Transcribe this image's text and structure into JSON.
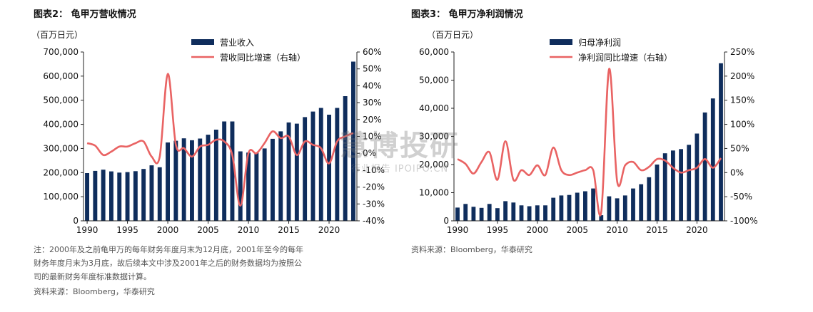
{
  "left": {
    "title": "图表2： 龟甲万营收情况",
    "unit": "（百万日元）",
    "note_lines": [
      "注：2000年及之前龟甲万的每年财务年度月末为12月底，2001年至今的每年",
      "财务年度月末为3月底，故后续本文中涉及2001年之后的财务数据均为按照公",
      "司的最新财务年度标准数据计算。"
    ],
    "source": "资料来源：Bloomberg，华泰研究"
  },
  "right": {
    "title": "图表3： 龟甲万净利润情况",
    "unit": "（百万日元）",
    "source": "资料来源：Bloomberg，华泰研究"
  },
  "watermark": {
    "main": "慧博投研",
    "sub": "行业报告 IPOIPO.CN"
  },
  "colors": {
    "bar": "#0f2d5c",
    "line": "#e96363",
    "axis": "#222222"
  },
  "chart_data": [
    {
      "type": "bar",
      "x": [
        1990,
        1991,
        1992,
        1993,
        1994,
        1995,
        1996,
        1997,
        1998,
        1999,
        2000,
        2001,
        2002,
        2003,
        2004,
        2005,
        2006,
        2007,
        2008,
        2009,
        2010,
        2011,
        2012,
        2013,
        2014,
        2015,
        2016,
        2017,
        2018,
        2019,
        2020,
        2021,
        2022,
        2023
      ],
      "series": [
        {
          "name": "营业收入",
          "axis": "left",
          "values": [
            198000,
            207000,
            212000,
            205000,
            200000,
            202000,
            206000,
            215000,
            230000,
            222000,
            325000,
            332000,
            342000,
            334000,
            341000,
            357000,
            378000,
            412000,
            412000,
            288000,
            283000,
            283000,
            300000,
            340000,
            371000,
            408000,
            403000,
            430000,
            453000,
            468000,
            440000,
            468000,
            517000,
            660000
          ]
        },
        {
          "name": "营收同比增速（右轴）",
          "axis": "right",
          "type": "line",
          "values": [
            6,
            4.5,
            -1,
            1,
            4,
            4,
            6,
            7,
            -2,
            -2,
            47,
            5,
            3,
            -2,
            4,
            5,
            8,
            7,
            -1,
            -31,
            0,
            0,
            6,
            13,
            9,
            10,
            -1,
            7,
            5,
            3,
            -6,
            7,
            10,
            12
          ]
        }
      ],
      "xlabel": "",
      "ylabel": "",
      "ylim": [
        0,
        700000
      ],
      "y2lim": [
        -40,
        60
      ],
      "xticks": [
        "1990",
        "1995",
        "2000",
        "2005",
        "2010",
        "2015",
        "2020"
      ],
      "yticks": [
        "0",
        "100,000",
        "200,000",
        "300,000",
        "400,000",
        "500,000",
        "600,000",
        "700,000"
      ],
      "y2ticks": [
        "-40%",
        "-30%",
        "-20%",
        "-10%",
        "0%",
        "10%",
        "20%",
        "30%",
        "40%",
        "50%",
        "60%"
      ],
      "legend": "top-center",
      "grid": false
    },
    {
      "type": "bar",
      "x": [
        1990,
        1991,
        1992,
        1993,
        1994,
        1995,
        1996,
        1997,
        1998,
        1999,
        2000,
        2001,
        2002,
        2003,
        2004,
        2005,
        2006,
        2007,
        2008,
        2009,
        2010,
        2011,
        2012,
        2013,
        2014,
        2015,
        2016,
        2017,
        2018,
        2019,
        2020,
        2021,
        2022,
        2023
      ],
      "series": [
        {
          "name": "归母净利润",
          "axis": "left",
          "values": [
            4700,
            6000,
            5000,
            4600,
            6000,
            4500,
            7000,
            6500,
            5500,
            5200,
            5500,
            5500,
            8200,
            9000,
            9200,
            10000,
            10500,
            11500,
            2000,
            8700,
            8000,
            9000,
            11500,
            13000,
            15500,
            20000,
            24000,
            25000,
            25500,
            27000,
            31000,
            38500,
            43500,
            56000
          ]
        },
        {
          "name": "净利润同比增速（右轴）",
          "axis": "right",
          "type": "line",
          "values": [
            28,
            18,
            -2,
            22,
            42,
            -15,
            65,
            -15,
            5,
            -5,
            15,
            -5,
            52,
            5,
            -5,
            0,
            5,
            5,
            -82,
            215,
            -18,
            15,
            22,
            5,
            12,
            28,
            25,
            10,
            0,
            5,
            10,
            28,
            10,
            30
          ]
        }
      ],
      "xlabel": "",
      "ylabel": "",
      "ylim": [
        0,
        60000
      ],
      "y2lim": [
        -100,
        250
      ],
      "xticks": [
        "1990",
        "1995",
        "2000",
        "2005",
        "2010",
        "2015",
        "2020"
      ],
      "yticks": [
        "0",
        "10,000",
        "20,000",
        "30,000",
        "40,000",
        "50,000",
        "60,000"
      ],
      "y2ticks": [
        "-100%",
        "-50%",
        "0%",
        "50%",
        "100%",
        "150%",
        "200%",
        "250%"
      ],
      "legend": "top-center",
      "grid": false
    }
  ]
}
